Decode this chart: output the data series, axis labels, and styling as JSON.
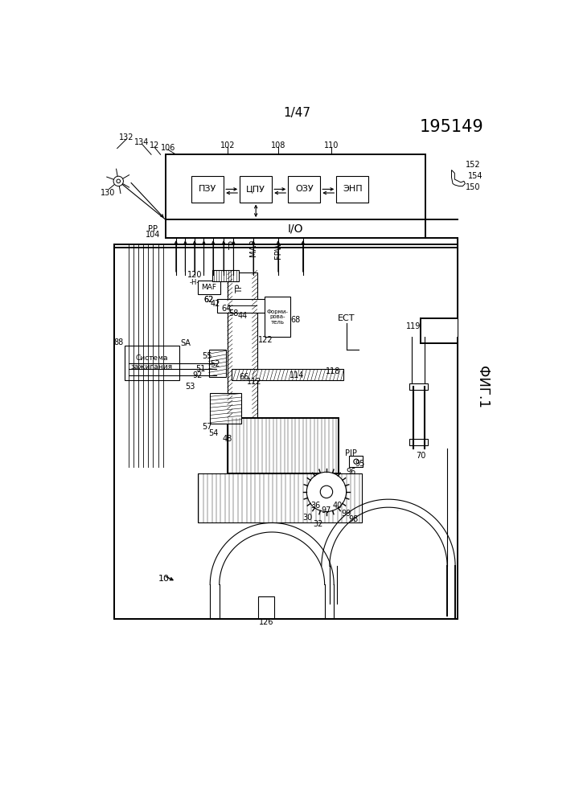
{
  "page_label": "1/47",
  "patent_number": "195149",
  "fig_label": "ФИГ.1",
  "background_color": "#ffffff",
  "line_color": "#000000"
}
